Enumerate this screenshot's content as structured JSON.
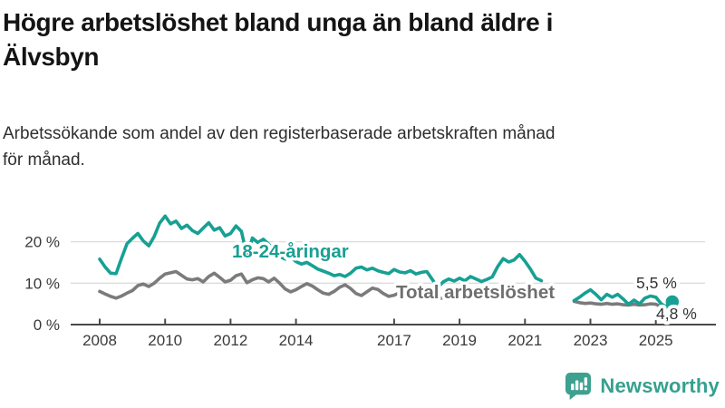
{
  "header": {
    "title_lines": [
      "Högre arbetslöshet bland unga än bland äldre i",
      "Älvsbyn"
    ],
    "subtitle_lines": [
      "Arbetssökande som andel av den registerbaserade arbetskraften månad",
      "för månad."
    ]
  },
  "chart_data": {
    "type": "line",
    "title": "Högre arbetslöshet bland unga än bland äldre i Älvsbyn",
    "subtitle": "Arbetssökande som andel av den registerbaserade arbetskraften månad för månad.",
    "unit": "%",
    "grid": "horizontal",
    "legend_position": "inline-labels",
    "ylim": [
      0,
      28
    ],
    "x_range": [
      2008,
      2025.6
    ],
    "data_gap_years": [
      2021.5,
      2022.5
    ],
    "y_ticks": [
      {
        "value": 0,
        "label": "0 %"
      },
      {
        "value": 10,
        "label": "10 %"
      },
      {
        "value": 20,
        "label": "20 %"
      }
    ],
    "x_ticks": [
      {
        "year": 2008,
        "label": "2008"
      },
      {
        "year": 2010,
        "label": "2010"
      },
      {
        "year": 2012,
        "label": "2012"
      },
      {
        "year": 2014,
        "label": "2014"
      },
      {
        "year": 2017,
        "label": "2017"
      },
      {
        "year": 2019,
        "label": "2019"
      },
      {
        "year": 2021,
        "label": "2021"
      },
      {
        "year": 2023,
        "label": "2023"
      },
      {
        "year": 2025,
        "label": "2025"
      }
    ],
    "colors": {
      "grid": "#dcdcdc",
      "axis": "#4a4a4a",
      "tick_text": "#3a3a3a"
    },
    "series": [
      {
        "id": "youth",
        "name": "18-24-åringar",
        "color": "#17a094",
        "label_color": "#17a094",
        "end_label": "5,5 %",
        "end_value": 5.5,
        "end_dot": true,
        "segments": [
          {
            "start": 2008.0,
            "step": 0.16667,
            "values": [
              15.8,
              13.9,
              12.4,
              12.3,
              16.0,
              19.5,
              20.8,
              22.0,
              20.2,
              19.0,
              21.3,
              24.5,
              26.2,
              24.3,
              25.0,
              23.2,
              24.0,
              22.7,
              22.0,
              23.3,
              24.6,
              22.8,
              23.4,
              21.4,
              22.0,
              23.8,
              22.5,
              16.6,
              20.9,
              19.8,
              20.6,
              19.4,
              17.8,
              16.5,
              15.8,
              16.4,
              15.2,
              14.6,
              15.0,
              14.2,
              13.4,
              12.9,
              12.4,
              11.8,
              12.1,
              11.6,
              12.4,
              13.6,
              13.9,
              13.2,
              13.6,
              13.0,
              12.6,
              12.3,
              13.3,
              12.7,
              12.5,
              13.0,
              12.2,
              12.6,
              12.8,
              10.9,
              8.9,
              10.3,
              11.0,
              10.5,
              11.2,
              10.6,
              11.6,
              11.0,
              10.4,
              10.9,
              11.5,
              14.0,
              15.9,
              15.1,
              15.6,
              16.9,
              15.3,
              13.4,
              11.2,
              10.6
            ]
          },
          {
            "start": 2022.5,
            "step": 0.16667,
            "values": [
              5.8,
              6.6,
              7.6,
              8.4,
              7.3,
              6.0,
              7.3,
              6.6,
              7.3,
              6.2,
              4.9,
              5.9,
              5.0,
              6.4,
              6.9,
              6.6,
              5.0,
              4.2,
              5.5
            ]
          }
        ]
      },
      {
        "id": "total",
        "name": "Total arbetslöshet",
        "color": "#7b7b7b",
        "label_color": "#6f6f6f",
        "end_label": "4,8 %",
        "end_value": 4.8,
        "end_dot": false,
        "segments": [
          {
            "start": 2008.0,
            "step": 0.16667,
            "values": [
              8.0,
              7.4,
              6.8,
              6.4,
              6.9,
              7.6,
              8.2,
              9.4,
              9.8,
              9.2,
              10.0,
              11.2,
              12.2,
              12.5,
              12.8,
              11.9,
              11.0,
              10.8,
              11.1,
              10.3,
              11.6,
              12.4,
              11.4,
              10.3,
              10.7,
              11.8,
              12.2,
              10.1,
              10.8,
              11.3,
              11.1,
              10.3,
              11.2,
              10.0,
              8.6,
              7.9,
              8.4,
              9.2,
              9.9,
              9.3,
              8.4,
              7.6,
              7.3,
              8.0,
              9.0,
              9.6,
              8.7,
              7.5,
              7.0,
              7.9,
              8.8,
              8.5,
              7.5,
              6.8,
              7.1,
              7.7,
              7.3,
              6.8,
              6.4,
              6.7,
              7.0,
              6.6,
              6.2,
              6.5,
              6.3,
              6.6,
              6.9,
              6.6,
              6.4,
              6.7,
              6.5,
              6.8,
              7.2,
              8.4,
              9.2,
              9.0,
              8.8,
              8.5,
              8.2,
              7.8,
              7.3,
              7.0
            ]
          },
          {
            "start": 2022.5,
            "step": 0.16667,
            "values": [
              5.6,
              5.3,
              5.1,
              5.2,
              5.0,
              4.9,
              5.1,
              4.9,
              5.0,
              4.8,
              4.7,
              4.9,
              4.7,
              4.8,
              5.0,
              4.9,
              4.3,
              4.5,
              4.8
            ]
          }
        ]
      }
    ]
  },
  "footer": {
    "brand": "Newsworthy",
    "brand_color": "#35a08f",
    "logo_icon": "bar-chart-speech-bubble"
  }
}
